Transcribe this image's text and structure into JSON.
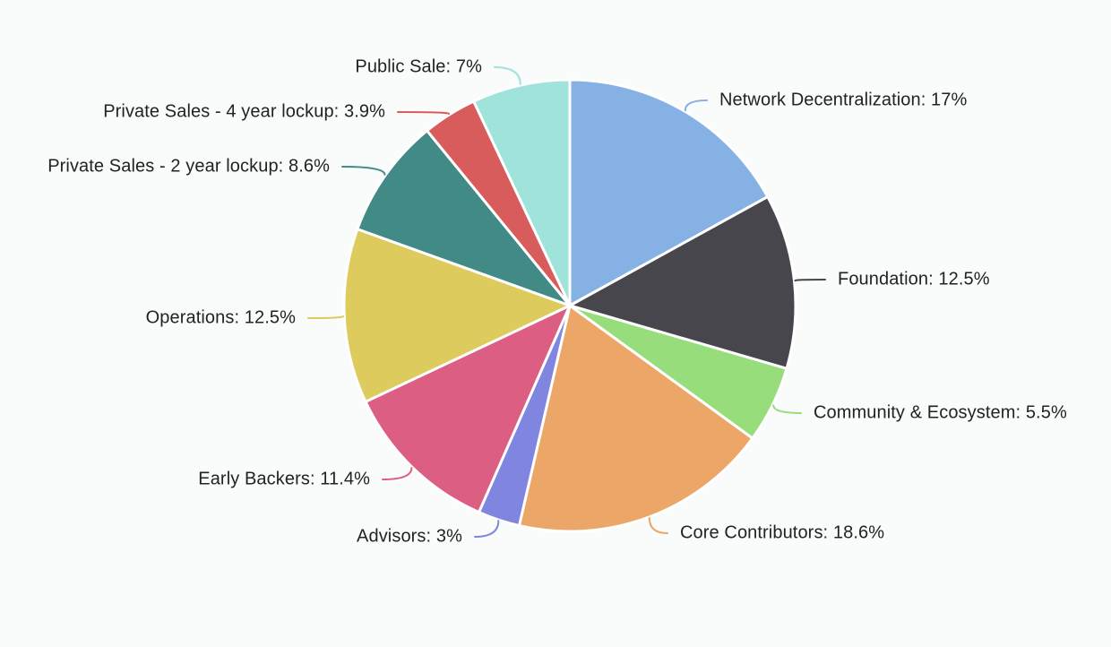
{
  "chart": {
    "background": "#fafbfb",
    "text_color": "#212226",
    "label_separator": ": ",
    "percent_suffix": "%",
    "slice_border_color": "#ffffff"
  },
  "chart_data": {
    "type": "pie",
    "title": "",
    "unit": "%",
    "start_angle_deg": -90,
    "direction": "clockwise",
    "legend": "none",
    "label_format": "{label}: {value}%",
    "slices": [
      {
        "label": "Network Decentralization",
        "value": 17,
        "color": "#85b1e4"
      },
      {
        "label": "Foundation",
        "value": 12.5,
        "color": "#46464c"
      },
      {
        "label": "Community & Ecosystem",
        "value": 5.5,
        "color": "#97dd7b"
      },
      {
        "label": "Core Contributors",
        "value": 18.6,
        "color": "#eca768"
      },
      {
        "label": "Advisors",
        "value": 3,
        "color": "#8085e0"
      },
      {
        "label": "Early Backers",
        "value": 11.4,
        "color": "#dc5f83"
      },
      {
        "label": "Operations",
        "value": 12.5,
        "color": "#ddcb5e"
      },
      {
        "label": "Private Sales - 2 year lockup",
        "value": 8.6,
        "color": "#428a86"
      },
      {
        "label": "Private Sales - 4 year lockup",
        "value": 3.9,
        "color": "#d95c5c"
      },
      {
        "label": "Public Sale",
        "value": 7,
        "color": "#9fe3da"
      }
    ]
  }
}
